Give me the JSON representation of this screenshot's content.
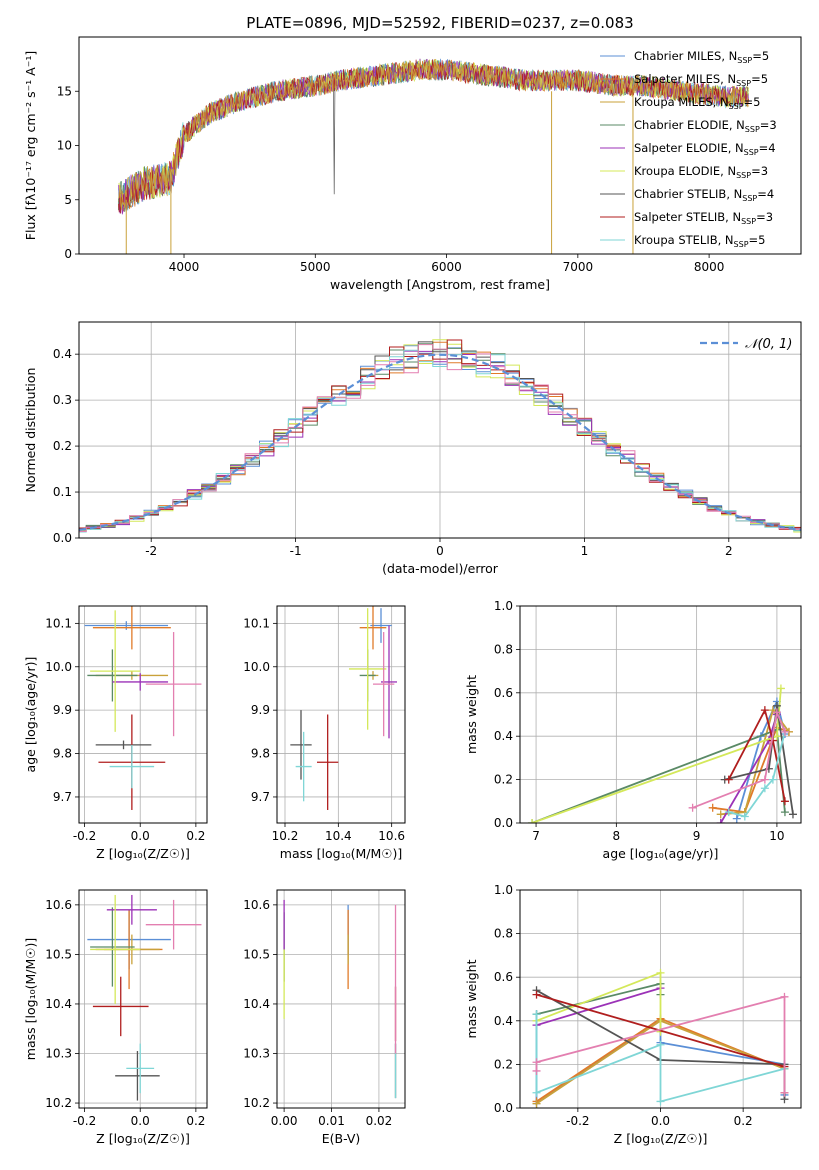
{
  "figure": {
    "title": "PLATE=0896, MJD=52592, FIBERID=0237, z=0.083"
  },
  "colors": {
    "series": [
      "#5b8fd6",
      "#e07b2a",
      "#c9a13a",
      "#5a8a66",
      "#9b32b7",
      "#d4e85a",
      "#555555",
      "#b01e1e",
      "#7fd6d6",
      "#e37fb0"
    ]
  },
  "chart_data": [
    {
      "id": "spectrum",
      "type": "line",
      "title": "PLATE=0896, MJD=52592, FIBERID=0237, z=0.083",
      "xlabel": "wavelength [Angstrom, rest frame]",
      "ylabel": "Flux [fλ10⁻¹⁷ erg cm⁻² s⁻¹ A⁻¹]",
      "xlim": [
        3200,
        8700
      ],
      "ylim": [
        0,
        20
      ],
      "xticks": [
        4000,
        5000,
        6000,
        7000,
        8000
      ],
      "yticks": [
        0,
        5,
        10,
        15
      ],
      "grid": false,
      "legend": "right",
      "legend_entries": [
        "Chabrier MILES, N_SSP=5",
        "Salpeter MILES, N_SSP=5",
        "Kroupa MILES, N_SSP=5",
        "Chabrier ELODIE, N_SSP=3",
        "Salpeter ELODIE, N_SSP=4",
        "Kroupa ELODIE, N_SSP=3",
        "Chabrier STELIB, N_SSP=4",
        "Salpeter STELIB, N_SSP=3",
        "Kroupa STELIB, N_SSP=5"
      ],
      "data_envelope": {
        "x": [
          3500,
          3700,
          3900,
          4000,
          4200,
          4400,
          4700,
          5000,
          5200,
          5500,
          5800,
          6000,
          6300,
          6600,
          7000,
          7300,
          7500,
          7800,
          8100,
          8300
        ],
        "y": [
          5,
          6.5,
          7,
          11,
          13,
          14,
          15,
          15.5,
          16,
          16.5,
          17,
          17,
          16.5,
          16,
          16,
          15.5,
          15.5,
          15,
          14.5,
          14.5
        ]
      }
    },
    {
      "id": "residuals",
      "type": "line",
      "xlabel": "(data-model)/error",
      "ylabel": "Normed distribution",
      "xlim": [
        -2.5,
        2.5
      ],
      "ylim": [
        0,
        0.47
      ],
      "xticks": [
        -2,
        -1,
        0,
        1,
        2
      ],
      "yticks": [
        0.0,
        0.1,
        0.2,
        0.3,
        0.4
      ],
      "grid": true,
      "legend": "top-right",
      "legend_entries": [
        "𝒩(0, 1)"
      ],
      "reference": {
        "name": "𝒩(0, 1)",
        "mean": 0,
        "sigma": 1
      }
    },
    {
      "id": "age-vs-Z",
      "type": "scatter",
      "xlabel": "Z [log₁₀(Z/Z☉)]",
      "ylabel": "age  [log₁₀(age/yr)]",
      "xlim": [
        -0.22,
        0.24
      ],
      "ylim": [
        9.64,
        10.14
      ],
      "xticks": [
        -0.2,
        0.0,
        0.2
      ],
      "yticks": [
        9.7,
        9.8,
        9.9,
        10.0,
        10.1
      ],
      "grid": true,
      "points": [
        {
          "x": -0.05,
          "y": 10.095,
          "xerr": 0.15,
          "yerr": 0.01
        },
        {
          "x": -0.03,
          "y": 10.09,
          "xerr": 0.14,
          "yerr": 0.05
        },
        {
          "x": -0.03,
          "y": 9.98,
          "xerr": 0.13,
          "yerr": 0.01
        },
        {
          "x": -0.1,
          "y": 9.98,
          "xerr": 0.09,
          "yerr": 0.06
        },
        {
          "x": 0.0,
          "y": 9.965,
          "xerr": 0.1,
          "yerr": 0.02
        },
        {
          "x": -0.09,
          "y": 9.99,
          "xerr": 0.09,
          "yerr": 0.14
        },
        {
          "x": -0.06,
          "y": 9.82,
          "xerr": 0.1,
          "yerr": 0.01
        },
        {
          "x": -0.03,
          "y": 9.78,
          "xerr": 0.12,
          "yerr": 0.11
        },
        {
          "x": -0.03,
          "y": 9.77,
          "xerr": 0.08,
          "yerr": 0.05
        },
        {
          "x": 0.12,
          "y": 9.96,
          "xerr": 0.1,
          "yerr": 0.12
        }
      ]
    },
    {
      "id": "age-vs-mass",
      "type": "scatter",
      "xlabel": "mass [log₁₀(M/M☉)]",
      "ylabel": "",
      "xlim": [
        10.17,
        10.65
      ],
      "ylim": [
        9.64,
        10.14
      ],
      "xticks": [
        10.2,
        10.4,
        10.6
      ],
      "yticks": [
        9.7,
        9.8,
        9.9,
        10.0,
        10.1
      ],
      "grid": true,
      "points": [
        {
          "x": 10.56,
          "y": 10.095,
          "xerr": 0.04,
          "yerr": 0.04
        },
        {
          "x": 10.53,
          "y": 10.09,
          "xerr": 0.05,
          "yerr": 0.05
        },
        {
          "x": 10.53,
          "y": 9.98,
          "xerr": 0.02,
          "yerr": 0.01
        },
        {
          "x": 10.51,
          "y": 9.98,
          "xerr": 0.03,
          "yerr": 0.06
        },
        {
          "x": 10.59,
          "y": 9.965,
          "xerr": 0.03,
          "yerr": 0.13
        },
        {
          "x": 10.51,
          "y": 9.995,
          "xerr": 0.07,
          "yerr": 0.14
        },
        {
          "x": 10.26,
          "y": 9.82,
          "xerr": 0.04,
          "yerr": 0.08
        },
        {
          "x": 10.36,
          "y": 9.78,
          "xerr": 0.04,
          "yerr": 0.11
        },
        {
          "x": 10.27,
          "y": 9.77,
          "xerr": 0.03,
          "yerr": 0.08
        },
        {
          "x": 10.57,
          "y": 9.96,
          "xerr": 0.04,
          "yerr": 0.12
        }
      ]
    },
    {
      "id": "weight-vs-age",
      "type": "line",
      "xlabel": "age  [log₁₀(age/yr)]",
      "ylabel": "mass weight",
      "xlim": [
        6.8,
        10.3
      ],
      "ylim": [
        0,
        1.0
      ],
      "xticks": [
        7,
        8,
        9,
        10
      ],
      "yticks": [
        0.0,
        0.2,
        0.4,
        0.6,
        0.8,
        1.0
      ],
      "grid": true,
      "series": [
        {
          "x": [
            9.5,
            9.8,
            10.0,
            10.1
          ],
          "y": [
            0.02,
            0.4,
            0.56,
            0.41
          ]
        },
        {
          "x": [
            9.2,
            9.6,
            10.0,
            10.15
          ],
          "y": [
            0.07,
            0.05,
            0.44,
            0.42
          ]
        },
        {
          "x": [
            9.3,
            9.6,
            9.95,
            10.15
          ],
          "y": [
            0.04,
            0.05,
            0.52,
            0.42
          ]
        },
        {
          "x": [
            6.95,
            10.0,
            10.1
          ],
          "y": [
            0.0,
            0.43,
            0.05
          ]
        },
        {
          "x": [
            9.3,
            9.9,
            10.0
          ],
          "y": [
            0.0,
            0.38,
            0.5
          ]
        },
        {
          "x": [
            6.95,
            10.0,
            10.05
          ],
          "y": [
            0.0,
            0.4,
            0.62
          ]
        },
        {
          "x": [
            9.35,
            9.9,
            10.0,
            10.2
          ],
          "y": [
            0.2,
            0.25,
            0.54,
            0.04
          ]
        },
        {
          "x": [
            9.4,
            9.85,
            9.95,
            10.1
          ],
          "y": [
            0.2,
            0.52,
            0.38,
            0.1
          ]
        },
        {
          "x": [
            9.4,
            9.6,
            9.85,
            9.95,
            10.1
          ],
          "y": [
            0.05,
            0.03,
            0.16,
            0.2,
            0.42
          ]
        },
        {
          "x": [
            8.95,
            9.85,
            10.0,
            10.1
          ],
          "y": [
            0.07,
            0.2,
            0.51,
            0.42
          ]
        }
      ]
    },
    {
      "id": "mass-vs-Z",
      "type": "scatter",
      "xlabel": "Z [log₁₀(Z/Z☉)]",
      "ylabel": "mass [log₁₀(M/M☉)]",
      "xlim": [
        -0.22,
        0.24
      ],
      "ylim": [
        10.19,
        10.63
      ],
      "xticks": [
        -0.2,
        0.0,
        0.2
      ],
      "yticks": [
        10.2,
        10.3,
        10.4,
        10.5,
        10.6
      ],
      "grid": true,
      "points": [
        {
          "x": -0.04,
          "y": 10.53,
          "xerr": 0.15,
          "yerr": 0.06
        },
        {
          "x": -0.04,
          "y": 10.51,
          "xerr": 0.12,
          "yerr": 0.08
        },
        {
          "x": -0.03,
          "y": 10.51,
          "xerr": 0.1,
          "yerr": 0.03
        },
        {
          "x": -0.1,
          "y": 10.515,
          "xerr": 0.08,
          "yerr": 0.08
        },
        {
          "x": -0.03,
          "y": 10.59,
          "xerr": 0.09,
          "yerr": 0.03
        },
        {
          "x": -0.09,
          "y": 10.51,
          "xerr": 0.09,
          "yerr": 0.11
        },
        {
          "x": -0.01,
          "y": 10.255,
          "xerr": 0.08,
          "yerr": 0.05
        },
        {
          "x": -0.07,
          "y": 10.395,
          "xerr": 0.1,
          "yerr": 0.06
        },
        {
          "x": 0.0,
          "y": 10.27,
          "xerr": 0.05,
          "yerr": 0.05
        },
        {
          "x": 0.12,
          "y": 10.56,
          "xerr": 0.1,
          "yerr": 0.05
        }
      ]
    },
    {
      "id": "mass-vs-ebv",
      "type": "scatter",
      "xlabel": "E(B-V)",
      "ylabel": "",
      "xlim": [
        -0.0015,
        0.0255
      ],
      "ylim": [
        10.19,
        10.63
      ],
      "xticks": [
        0.0,
        0.01,
        0.02
      ],
      "yticks": [
        10.2,
        10.3,
        10.4,
        10.5,
        10.6
      ],
      "grid": true,
      "points": [
        {
          "x": 0.0135,
          "y": 10.55,
          "xerr": 0,
          "yerr": 0.05
        },
        {
          "x": 0.0135,
          "y": 10.51,
          "xerr": 0,
          "yerr": 0.08
        },
        {
          "x": 0.0135,
          "y": 10.51,
          "xerr": 0,
          "yerr": 0.03
        },
        {
          "x": 0.0,
          "y": 10.515,
          "xerr": 0,
          "yerr": 0.07
        },
        {
          "x": 0.0,
          "y": 10.56,
          "xerr": 0,
          "yerr": 0.05
        },
        {
          "x": 0.0,
          "y": 10.44,
          "xerr": 0,
          "yerr": 0.07
        },
        {
          "x": 0.0235,
          "y": 10.265,
          "xerr": 0,
          "yerr": 0.055
        },
        {
          "x": 0.0235,
          "y": 10.38,
          "xerr": 0,
          "yerr": 0.055
        },
        {
          "x": 0.0235,
          "y": 10.265,
          "xerr": 0,
          "yerr": 0.055
        },
        {
          "x": 0.0235,
          "y": 10.45,
          "xerr": 0,
          "yerr": 0.15
        }
      ]
    },
    {
      "id": "weight-vs-Z",
      "type": "line",
      "xlabel": "Z [log₁₀(Z/Z☉)]",
      "ylabel": "mass weight",
      "xlim": [
        -0.34,
        0.34
      ],
      "ylim": [
        0,
        1.0
      ],
      "xticks": [
        -0.2,
        0.0,
        0.2
      ],
      "yticks": [
        0.0,
        0.2,
        0.4,
        0.6,
        0.8,
        1.0
      ],
      "grid": true,
      "series": [
        {
          "x": [
            -0.3,
            -0.3,
            0.0,
            0.0,
            0.3,
            0.3
          ],
          "y": [
            0.43,
            0.02,
            0.41,
            0.3,
            0.2,
            0.06
          ]
        },
        {
          "x": [
            -0.3,
            0.0,
            0.3,
            0.3
          ],
          "y": [
            0.03,
            0.41,
            0.18,
            0.07
          ]
        },
        {
          "x": [
            -0.3,
            0.0,
            0.3
          ],
          "y": [
            0.02,
            0.4,
            0.18
          ]
        },
        {
          "x": [
            -0.3,
            0.0,
            0.0
          ],
          "y": [
            0.43,
            0.57,
            0.52
          ]
        },
        {
          "x": [
            -0.3,
            0.0
          ],
          "y": [
            0.38,
            0.55
          ]
        },
        {
          "x": [
            -0.3,
            0.0,
            0.0
          ],
          "y": [
            0.4,
            0.62,
            0.35
          ]
        },
        {
          "x": [
            -0.3,
            0.0,
            0.3,
            0.3
          ],
          "y": [
            0.54,
            0.22,
            0.2,
            0.04
          ]
        },
        {
          "x": [
            -0.3,
            0.3
          ],
          "y": [
            0.52,
            0.19
          ]
        },
        {
          "x": [
            -0.3,
            -0.3,
            0.0,
            0.0,
            0.3
          ],
          "y": [
            0.43,
            0.07,
            0.29,
            0.03,
            0.18
          ]
        },
        {
          "x": [
            -0.3,
            -0.3,
            0.3,
            0.3
          ],
          "y": [
            0.17,
            0.21,
            0.51,
            0.07
          ]
        }
      ]
    }
  ]
}
